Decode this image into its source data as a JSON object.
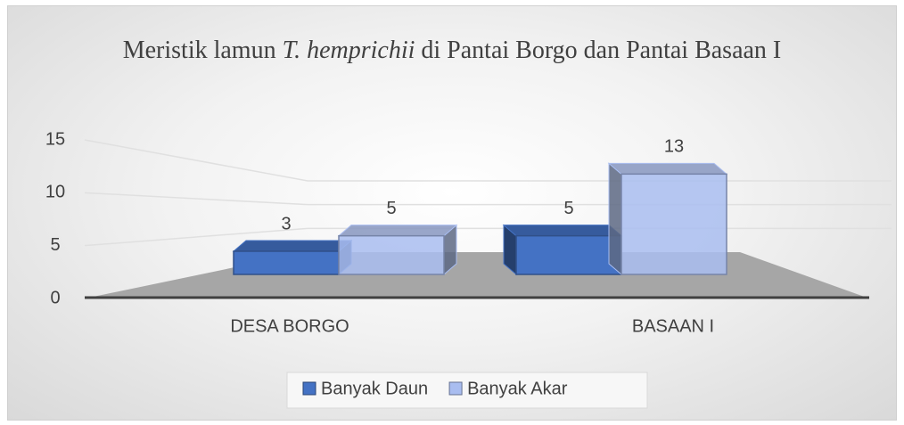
{
  "chart_data": {
    "type": "bar3d",
    "title": [
      "Meristik lamun ",
      "T. hemprichii",
      " di Pantai Borgo dan Pantai Basaan I"
    ],
    "categories": [
      "DESA BORGO",
      "BASAAN I"
    ],
    "series": [
      {
        "name": "Banyak Daun",
        "color": "#4472c4",
        "values": [
          3,
          5
        ]
      },
      {
        "name": "Banyak Akar",
        "color": "#a9bdf0",
        "values": [
          5,
          13
        ]
      }
    ],
    "ylim": [
      0,
      15
    ],
    "yticks": [
      0,
      5,
      10,
      15
    ],
    "grid": true,
    "legend": "bottom"
  }
}
